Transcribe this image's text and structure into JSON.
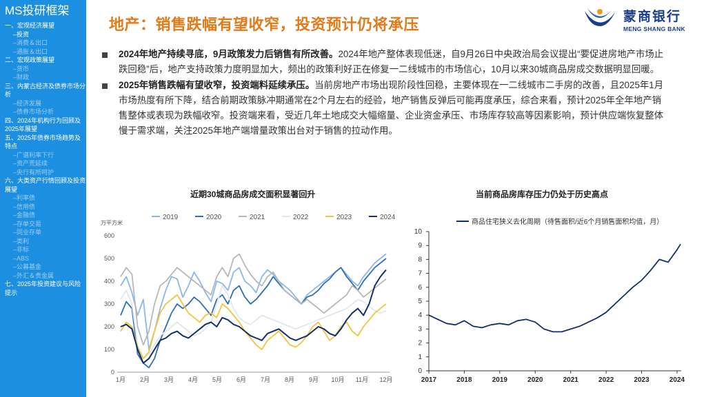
{
  "sidebar": {
    "brand": "MS投研框架",
    "items": [
      {
        "label": "一、宏观经济展望",
        "level": "sec"
      },
      {
        "label": "–投资",
        "level": "sub",
        "active": true
      },
      {
        "label": "–消费＆出口",
        "level": "sub"
      },
      {
        "label": "–通胀＆出口",
        "level": "sub"
      },
      {
        "label": "二、宏观政策展望",
        "level": "sec"
      },
      {
        "label": "–货币",
        "level": "sub"
      },
      {
        "label": "–财政",
        "level": "sub"
      },
      {
        "label": "三、内蒙古经济及债券市场分析",
        "level": "sec"
      },
      {
        "label": "–经济发展",
        "level": "sub"
      },
      {
        "label": "–债券市场分析",
        "level": "sub"
      },
      {
        "label": "四、2024年机构行为回顾及2025年展望",
        "level": "sec"
      },
      {
        "label": "五、2025年债券市场趋势及特点",
        "level": "sec"
      },
      {
        "label": "–广谱利率下行",
        "level": "sub"
      },
      {
        "label": "–资产荒延续",
        "level": "sub"
      },
      {
        "label": "–央行有所呵护",
        "level": "sub"
      },
      {
        "label": "六、大类资产行情回顾及投资展望",
        "level": "sec"
      },
      {
        "label": "–利率债",
        "level": "sub"
      },
      {
        "label": "–信用债",
        "level": "sub"
      },
      {
        "label": "–金融债",
        "level": "sub"
      },
      {
        "label": "–存单交易",
        "level": "sub"
      },
      {
        "label": "–同业存单",
        "level": "sub"
      },
      {
        "label": "–类利",
        "level": "sub"
      },
      {
        "label": "–非标",
        "level": "sub"
      },
      {
        "label": "–ABS",
        "level": "sub"
      },
      {
        "label": "–公募基金",
        "level": "sub"
      },
      {
        "label": "–外汇＆贵金属",
        "level": "sub"
      },
      {
        "label": "七、2025年投资建议与风险提示",
        "level": "sec"
      }
    ]
  },
  "header": {
    "title": "地产：销售跌幅有望收窄，投资预计仍将承压"
  },
  "logo": {
    "name": "蒙商银行",
    "en": "MENG SHANG BANK"
  },
  "bullets": [
    {
      "bold": "2024年地产持续寻底，9月政策发力后销售有所改善。",
      "text": "2024年地产整体表现低迷，自9月26日中央政治局会议提出“要促进房地产市场止跌回稳”后，地产支持政策力度明显加大，频出的政策利好正在修复一二线城市的市场信心，10月以来30城商品房成交数据明显回暖。"
    },
    {
      "bold": "2025年销售跌幅有望收窄，投资端料延续承压。",
      "text": "当前房地产市场出现阶段性回稳，主要体现在一二线城市二手房的改善，且2025年1月市场热度有所下降，结合前期政策脉冲期通常在2个月左右的经验，地产销售反弹后可能再度承压，综合来看，预计2025年全年地产销售整体或表现为跌幅收窄。投资端来看，受近几年土地成交大幅缩量、企业资金承压、市场库存较高等因素影响，预计供应端恢复整体慢于需求端，关注2025年地产端增量政策出台对于销售的拉动作用。"
    }
  ],
  "chart_data": [
    {
      "type": "line",
      "title": "近期30城商品房成交面积显著回升",
      "ylabel": "万平方米",
      "ylim": [
        0,
        600
      ],
      "yticks": [
        "0",
        "100",
        "200",
        "300",
        "400",
        "500",
        "600"
      ],
      "xticks": [
        "1月",
        "2月",
        "3月",
        "4月",
        "5月",
        "6月",
        "7月",
        "8月",
        "9月",
        "10月",
        "11月",
        "12月"
      ],
      "series": [
        {
          "name": "2019",
          "color": "#8ab8e6",
          "values": [
            380,
            420,
            350,
            250,
            320,
            100,
            180,
            280,
            360,
            420,
            410,
            330,
            380,
            440,
            400,
            350,
            310,
            400,
            390,
            360,
            440,
            460,
            400,
            380,
            350,
            420,
            450,
            430,
            400,
            380,
            360,
            330,
            300,
            340,
            360,
            380,
            400,
            420,
            440,
            460,
            430,
            400,
            380,
            420,
            450,
            480,
            500,
            520
          ]
        },
        {
          "name": "2020",
          "color": "#2e6db4",
          "values": [
            250,
            310,
            280,
            80,
            40,
            20,
            60,
            140,
            200,
            260,
            300,
            280,
            300,
            330,
            310,
            280,
            250,
            320,
            340,
            300,
            360,
            380,
            330,
            300,
            320,
            350,
            380,
            420,
            390,
            360,
            340,
            320,
            300,
            330,
            340,
            360,
            390,
            410,
            440,
            460,
            420,
            390,
            360,
            400,
            430,
            460,
            480,
            500
          ]
        },
        {
          "name": "2021",
          "color": "#b7b7b7",
          "values": [
            420,
            460,
            430,
            200,
            120,
            180,
            300,
            380,
            400,
            430,
            460,
            440,
            420,
            400,
            380,
            360,
            340,
            420,
            460,
            420,
            500,
            520,
            470,
            430,
            400,
            380,
            420,
            440,
            400,
            360,
            340,
            320,
            300,
            320,
            300,
            280,
            260,
            280,
            300,
            320,
            340,
            380,
            360,
            330,
            350,
            370,
            390,
            410
          ]
        },
        {
          "name": "2022",
          "color": "#dfe7ee",
          "values": [
            320,
            360,
            300,
            120,
            60,
            80,
            120,
            160,
            180,
            200,
            220,
            200,
            180,
            160,
            170,
            190,
            220,
            300,
            380,
            340,
            280,
            240,
            220,
            210,
            230,
            250,
            240,
            230,
            220,
            210,
            200,
            190,
            200,
            210,
            220,
            230,
            240,
            250,
            260,
            270,
            280,
            300,
            320,
            310,
            290,
            270,
            260,
            270
          ]
        },
        {
          "name": "2023",
          "color": "#f2c43b",
          "values": [
            180,
            220,
            200,
            110,
            60,
            90,
            180,
            260,
            300,
            320,
            340,
            300,
            260,
            240,
            220,
            250,
            260,
            240,
            300,
            280,
            250,
            220,
            180,
            150,
            120,
            100,
            140,
            160,
            180,
            150,
            120,
            110,
            130,
            160,
            200,
            220,
            180,
            140,
            160,
            200,
            220,
            180,
            160,
            200,
            230,
            260,
            280,
            300
          ]
        },
        {
          "name": "2024",
          "color": "#102f6b",
          "values": [
            200,
            210,
            190,
            100,
            40,
            60,
            100,
            140,
            150,
            170,
            180,
            160,
            150,
            170,
            190,
            210,
            220,
            200,
            240,
            230,
            210,
            200,
            180,
            160,
            150,
            140,
            170,
            180,
            190,
            170,
            150,
            140,
            150,
            160,
            180,
            200,
            190,
            170,
            160,
            190,
            230,
            260,
            280,
            250,
            300,
            380,
            420,
            450
          ]
        }
      ]
    },
    {
      "type": "line",
      "title": "当前商品房库存压力仍处于历史高点",
      "legend": "商品住宅狭义去化周期（待售面积/近6个月销售面积均值，月）",
      "ylim": [
        0,
        10
      ],
      "yticks": [
        "0",
        "1",
        "2",
        "3",
        "4",
        "5",
        "6",
        "7",
        "8",
        "9",
        "10"
      ],
      "xticks": [
        "2017",
        "2018",
        "2019",
        "2020",
        "2021",
        "2022",
        "2023",
        "2024"
      ],
      "series": [
        {
          "name": "商品住宅狭义去化周期",
          "color": "#102f6b",
          "x": [
            2017,
            2017.25,
            2017.5,
            2017.75,
            2018,
            2018.25,
            2018.5,
            2018.75,
            2019,
            2019.25,
            2019.5,
            2019.75,
            2020,
            2020.25,
            2020.5,
            2020.75,
            2021,
            2021.25,
            2021.5,
            2021.75,
            2022,
            2022.25,
            2022.5,
            2022.75,
            2023,
            2023.25,
            2023.5,
            2023.75,
            2024,
            2024.1
          ],
          "values": [
            4.0,
            3.7,
            3.4,
            3.3,
            3.6,
            3.2,
            3.1,
            3.3,
            3.4,
            3.3,
            3.6,
            3.7,
            3.5,
            3.0,
            2.8,
            2.8,
            3.0,
            3.2,
            3.5,
            3.8,
            4.2,
            4.8,
            5.4,
            6.0,
            6.5,
            7.2,
            8.0,
            7.8,
            8.7,
            9.1
          ]
        }
      ]
    }
  ]
}
